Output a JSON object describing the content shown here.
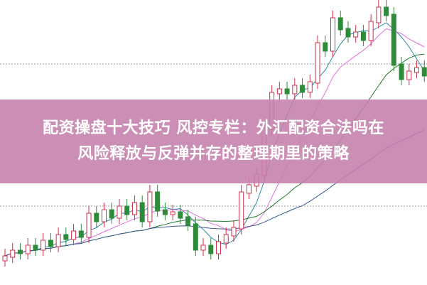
{
  "title": {
    "line1": "配资操盘十大技巧 风控专栏：外汇配资合法吗在",
    "line2": "风险释放与反弹并存的整理期里的策略"
  },
  "colors": {
    "banner": "#c480ac",
    "candle_up": "#d0304a",
    "candle_down": "#2e8b3a",
    "ma_short": "#2a8ca0",
    "ma_mid": "#e070e0",
    "ma_long": "#1f7a2e",
    "ma_slow": "#3a5a90"
  }
}
